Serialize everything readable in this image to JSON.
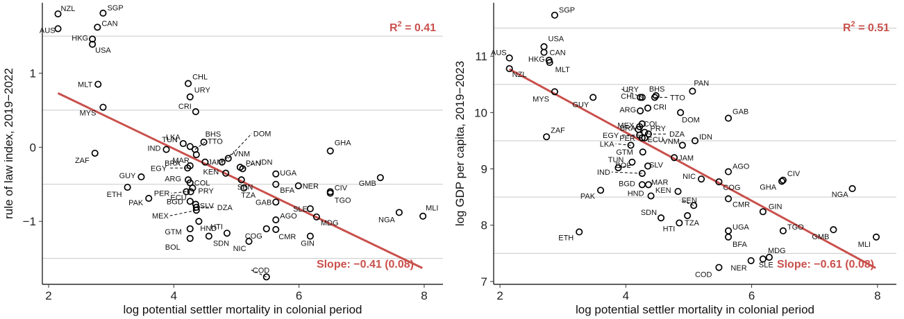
{
  "colors": {
    "accent": "#c9504c",
    "point": "#000000",
    "grid": "#c8c8c8",
    "background": "#ffffff"
  },
  "chart_data": [
    {
      "type": "scatter",
      "xlabel": "log potential settler mortality in colonial period",
      "ylabel": "rule of law index, 2019−2022",
      "xlim": [
        1.9,
        8.3
      ],
      "ylim": [
        -1.85,
        1.95
      ],
      "xticks": [
        2,
        4,
        6,
        8
      ],
      "xtick_labels": [
        "2",
        "4",
        "6",
        "8"
      ],
      "yticks": [
        -1,
        0,
        1
      ],
      "ytick_labels": [
        "−1",
        "0",
        "1"
      ],
      "gridlines_y": [
        -1.5,
        -0.5,
        0.5,
        1.5
      ],
      "r2_prefix": "R",
      "r2_exponent": "2",
      "r2_value": " = 0.41",
      "slope_text": "Slope: −0.41 (0.08)",
      "fit_line": {
        "x": [
          2.15,
          7.97
        ],
        "y": [
          0.73,
          -1.63
        ]
      },
      "points": [
        {
          "label": "NZL",
          "x": 2.15,
          "y": 1.8
        },
        {
          "label": "AUS",
          "x": 2.15,
          "y": 1.6
        },
        {
          "label": "SGP",
          "x": 2.87,
          "y": 1.81
        },
        {
          "label": "CAN",
          "x": 2.78,
          "y": 1.62
        },
        {
          "label": "HKG",
          "x": 2.7,
          "y": 1.46
        },
        {
          "label": "USA",
          "x": 2.7,
          "y": 1.39
        },
        {
          "label": "MLT",
          "x": 2.79,
          "y": 0.85
        },
        {
          "label": "MYS",
          "x": 2.87,
          "y": 0.54
        },
        {
          "label": "ZAF",
          "x": 2.74,
          "y": -0.08
        },
        {
          "label": "GUY",
          "x": 3.48,
          "y": -0.4
        },
        {
          "label": "ETH",
          "x": 3.26,
          "y": -0.54
        },
        {
          "label": "PAK",
          "x": 3.6,
          "y": -0.69
        },
        {
          "label": "IND",
          "x": 3.88,
          "y": -0.03
        },
        {
          "label": "EGY",
          "x": 4.22,
          "y": -0.28
        },
        {
          "label": "BRA",
          "x": 4.26,
          "y": -0.25
        },
        {
          "label": "TUN",
          "x": 4.15,
          "y": 0.05
        },
        {
          "label": "LKA",
          "x": 4.26,
          "y": 0.01
        },
        {
          "label": "CHL",
          "x": 4.23,
          "y": 0.86
        },
        {
          "label": "URY",
          "x": 4.26,
          "y": 0.68
        },
        {
          "label": "CRI",
          "x": 4.35,
          "y": 0.48
        },
        {
          "label": "BHS",
          "x": 4.48,
          "y": 0.07
        },
        {
          "label": "TTO",
          "x": 4.34,
          "y": -0.03
        },
        {
          "label": "MAR",
          "x": 4.36,
          "y": -0.1
        },
        {
          "label": "JAM",
          "x": 4.5,
          "y": -0.2
        },
        {
          "label": "ARG",
          "x": 4.23,
          "y": -0.44
        },
        {
          "label": "COL",
          "x": 4.26,
          "y": -0.48
        },
        {
          "label": "PRY",
          "x": 4.3,
          "y": -0.55
        },
        {
          "label": "PER",
          "x": 4.2,
          "y": -0.6
        },
        {
          "label": "ECU",
          "x": 4.27,
          "y": -0.6
        },
        {
          "label": "BGD",
          "x": 4.26,
          "y": -0.73
        },
        {
          "label": "SLV",
          "x": 4.35,
          "y": -0.77
        },
        {
          "label": "DZA",
          "x": 4.36,
          "y": -0.81
        },
        {
          "label": "MEX",
          "x": 4.36,
          "y": -0.85
        },
        {
          "label": "HND",
          "x": 4.4,
          "y": -1.0
        },
        {
          "label": "GTM",
          "x": 4.26,
          "y": -1.1
        },
        {
          "label": "BOL",
          "x": 4.26,
          "y": -1.23
        },
        {
          "label": "SDN",
          "x": 4.56,
          "y": -1.2
        },
        {
          "label": "DOM",
          "x": 4.87,
          "y": -0.15
        },
        {
          "label": "VNM",
          "x": 4.77,
          "y": -0.2
        },
        {
          "label": "PAN",
          "x": 5.06,
          "y": -0.27
        },
        {
          "label": "IDN",
          "x": 5.1,
          "y": -0.29
        },
        {
          "label": "KEN",
          "x": 4.83,
          "y": -0.35
        },
        {
          "label": "SEN",
          "x": 5.08,
          "y": -0.44
        },
        {
          "label": "TZA",
          "x": 5.12,
          "y": -0.55
        },
        {
          "label": "UGA",
          "x": 5.63,
          "y": -0.36
        },
        {
          "label": "BFA",
          "x": 5.63,
          "y": -0.5
        },
        {
          "label": "NER",
          "x": 5.99,
          "y": -0.52
        },
        {
          "label": "GAB",
          "x": 5.63,
          "y": -0.74
        },
        {
          "label": "SLE",
          "x": 6.18,
          "y": -0.83
        },
        {
          "label": "AGO",
          "x": 5.63,
          "y": -0.98
        },
        {
          "label": "MDG",
          "x": 6.28,
          "y": -0.94
        },
        {
          "label": "HTI",
          "x": 4.85,
          "y": -1.16
        },
        {
          "label": "COG",
          "x": 5.48,
          "y": -1.1
        },
        {
          "label": "CMR",
          "x": 5.63,
          "y": -1.11
        },
        {
          "label": "NIC",
          "x": 5.2,
          "y": -1.27
        },
        {
          "label": "GIN",
          "x": 6.18,
          "y": -1.2
        },
        {
          "label": "COD",
          "x": 5.48,
          "y": -1.75
        },
        {
          "label": "GHA",
          "x": 6.5,
          "y": -0.05
        },
        {
          "label": "CIV",
          "x": 6.5,
          "y": -0.6
        },
        {
          "label": "TGO",
          "x": 6.5,
          "y": -0.62
        },
        {
          "label": "GMB",
          "x": 7.3,
          "y": -0.41
        },
        {
          "label": "NGA",
          "x": 7.6,
          "y": -0.88
        },
        {
          "label": "MLI",
          "x": 7.98,
          "y": -0.93
        }
      ]
    },
    {
      "type": "scatter",
      "xlabel": "log potential settler mortality in colonial period",
      "ylabel": "log GDP per capita, 2019−2023",
      "xlim": [
        1.9,
        8.3
      ],
      "ylim": [
        6.95,
        11.95
      ],
      "xticks": [
        2,
        4,
        6,
        8
      ],
      "xtick_labels": [
        "2",
        "4",
        "6",
        "8"
      ],
      "yticks": [
        7,
        8,
        9,
        10,
        11
      ],
      "ytick_labels": [
        "7",
        "8",
        "9",
        "10",
        "11"
      ],
      "gridlines_y": [
        7.5,
        8.5,
        9.5,
        10.5,
        11.5
      ],
      "r2_prefix": "R",
      "r2_exponent": "2",
      "r2_value": " = 0.51",
      "slope_text": "Slope: −0.61 (0.08)",
      "fit_line": {
        "x": [
          2.15,
          7.97
        ],
        "y": [
          10.77,
          7.24
        ]
      },
      "points": [
        {
          "label": "SGP",
          "x": 2.87,
          "y": 11.73
        },
        {
          "label": "AUS",
          "x": 2.15,
          "y": 10.97
        },
        {
          "label": "NZL",
          "x": 2.15,
          "y": 10.78
        },
        {
          "label": "USA",
          "x": 2.7,
          "y": 11.17
        },
        {
          "label": "CAN",
          "x": 2.7,
          "y": 11.07
        },
        {
          "label": "HKG",
          "x": 2.78,
          "y": 10.93
        },
        {
          "label": "MLT",
          "x": 2.79,
          "y": 10.89
        },
        {
          "label": "MYS",
          "x": 2.87,
          "y": 10.37
        },
        {
          "label": "GUY",
          "x": 3.48,
          "y": 10.27
        },
        {
          "label": "ZAF",
          "x": 2.74,
          "y": 9.57
        },
        {
          "label": "PAK",
          "x": 3.6,
          "y": 8.62
        },
        {
          "label": "ETH",
          "x": 3.26,
          "y": 7.88
        },
        {
          "label": "URY",
          "x": 4.26,
          "y": 10.27
        },
        {
          "label": "CHL",
          "x": 4.23,
          "y": 10.27
        },
        {
          "label": "BHS",
          "x": 4.48,
          "y": 10.3
        },
        {
          "label": "TTO",
          "x": 4.46,
          "y": 10.27
        },
        {
          "label": "PAN",
          "x": 5.06,
          "y": 10.38
        },
        {
          "label": "CRI",
          "x": 4.35,
          "y": 10.08
        },
        {
          "label": "ARG",
          "x": 4.23,
          "y": 10.03
        },
        {
          "label": "COL",
          "x": 4.26,
          "y": 9.8
        },
        {
          "label": "DOM",
          "x": 4.87,
          "y": 10.0
        },
        {
          "label": "GAB",
          "x": 5.63,
          "y": 9.9
        },
        {
          "label": "MEX",
          "x": 4.22,
          "y": 9.75
        },
        {
          "label": "BRA",
          "x": 4.2,
          "y": 9.7
        },
        {
          "label": "PRY",
          "x": 4.3,
          "y": 9.65
        },
        {
          "label": "EGY",
          "x": 4.22,
          "y": 9.6
        },
        {
          "label": "PER",
          "x": 4.26,
          "y": 9.55
        },
        {
          "label": "ECU",
          "x": 4.3,
          "y": 9.55
        },
        {
          "label": "DZA",
          "x": 4.36,
          "y": 9.62
        },
        {
          "label": "IDN",
          "x": 5.1,
          "y": 9.5
        },
        {
          "label": "LKA",
          "x": 4.08,
          "y": 9.42
        },
        {
          "label": "VNM",
          "x": 4.9,
          "y": 9.42
        },
        {
          "label": "GTM",
          "x": 4.27,
          "y": 9.3
        },
        {
          "label": "JAM",
          "x": 4.77,
          "y": 9.2
        },
        {
          "label": "TUN",
          "x": 4.1,
          "y": 9.12
        },
        {
          "label": "BOL",
          "x": 3.88,
          "y": 9.02
        },
        {
          "label": "SLV",
          "x": 4.35,
          "y": 9.05
        },
        {
          "label": "AGO",
          "x": 5.63,
          "y": 8.95
        },
        {
          "label": "IND",
          "x": 4.26,
          "y": 8.92
        },
        {
          "label": "MAR",
          "x": 4.36,
          "y": 8.72
        },
        {
          "label": "NIC",
          "x": 5.2,
          "y": 8.82
        },
        {
          "label": "COG",
          "x": 5.48,
          "y": 8.77
        },
        {
          "label": "CIV",
          "x": 6.5,
          "y": 8.8
        },
        {
          "label": "GHA",
          "x": 6.48,
          "y": 8.78
        },
        {
          "label": "BGD",
          "x": 4.26,
          "y": 8.72
        },
        {
          "label": "KEN",
          "x": 4.83,
          "y": 8.6
        },
        {
          "label": "HND",
          "x": 4.4,
          "y": 8.52
        },
        {
          "label": "NGA",
          "x": 7.6,
          "y": 8.65
        },
        {
          "label": "SEN",
          "x": 5.08,
          "y": 8.35
        },
        {
          "label": "CMR",
          "x": 5.63,
          "y": 8.47
        },
        {
          "label": "GIN",
          "x": 6.18,
          "y": 8.24
        },
        {
          "label": "TZA",
          "x": 4.98,
          "y": 8.17
        },
        {
          "label": "SDN",
          "x": 4.56,
          "y": 8.13
        },
        {
          "label": "HTI",
          "x": 4.85,
          "y": 8.04
        },
        {
          "label": "UGA",
          "x": 5.63,
          "y": 7.9
        },
        {
          "label": "BFA",
          "x": 5.63,
          "y": 7.79
        },
        {
          "label": "TGO",
          "x": 6.5,
          "y": 7.9
        },
        {
          "label": "GMB",
          "x": 7.3,
          "y": 7.92
        },
        {
          "label": "MLI",
          "x": 7.98,
          "y": 7.79
        },
        {
          "label": "MDG",
          "x": 6.28,
          "y": 7.43
        },
        {
          "label": "SLE",
          "x": 6.18,
          "y": 7.4
        },
        {
          "label": "NER",
          "x": 5.99,
          "y": 7.37
        },
        {
          "label": "COD",
          "x": 5.48,
          "y": 7.25
        }
      ]
    }
  ]
}
